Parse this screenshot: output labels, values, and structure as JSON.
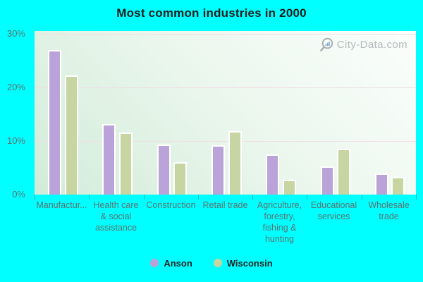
{
  "title": "Most common industries in 2000",
  "watermark": "City-Data.com",
  "colors": {
    "background": "#00ffff",
    "anson": "#b9a3d8",
    "wisconsin": "#c6d5a2",
    "gridline": "#f0dde6",
    "axis_text": "#5c7370",
    "title_text": "#1d1d1d",
    "watermark_text": "#b3babd"
  },
  "chart_data": {
    "type": "bar",
    "title": "Most common industries in 2000",
    "categories": [
      "Manufactur...",
      "Health care & social assistance",
      "Construction",
      "Retail trade",
      "Agriculture, forestry, fishing & hunting",
      "Educational services",
      "Wholesale trade"
    ],
    "category_lines": [
      [
        "Manufactur..."
      ],
      [
        "Health care",
        "& social",
        "assistance"
      ],
      [
        "Construction"
      ],
      [
        "Retail trade"
      ],
      [
        "Agriculture,",
        "forestry,",
        "fishing &",
        "hunting"
      ],
      [
        "Educational",
        "services"
      ],
      [
        "Wholesale",
        "trade"
      ]
    ],
    "series": [
      {
        "name": "Anson",
        "color": "#b9a3d8",
        "values": [
          27.0,
          13.2,
          9.3,
          9.2,
          7.5,
          5.2,
          4.0
        ]
      },
      {
        "name": "Wisconsin",
        "color": "#c6d5a2",
        "values": [
          22.3,
          11.6,
          6.0,
          11.8,
          2.8,
          8.6,
          3.3
        ]
      }
    ],
    "xlabel": "",
    "ylabel": "",
    "ytick_values": [
      0,
      10,
      20,
      30
    ],
    "ytick_labels": [
      "0%",
      "10%",
      "20%",
      "30%"
    ],
    "ylim": [
      0,
      30
    ],
    "grid": true,
    "legend_position": "bottom"
  },
  "legend": {
    "items": [
      {
        "label": "Anson",
        "color": "#b9a3d8"
      },
      {
        "label": "Wisconsin",
        "color": "#c6d5a2"
      }
    ]
  }
}
